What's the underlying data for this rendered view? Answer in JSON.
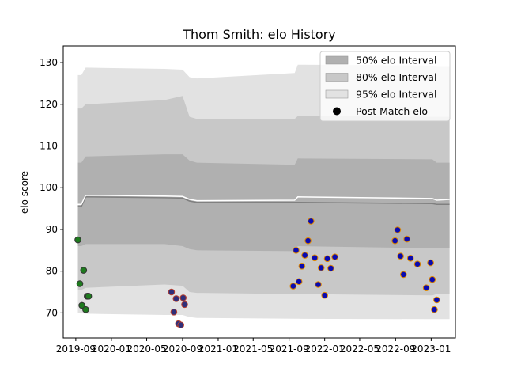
{
  "chart_data": {
    "type": "scatter",
    "title": "Thom Smith: elo History",
    "xlabel": "",
    "ylabel": "elo score",
    "xlim": [
      "2019-07-20",
      "2023-03-25"
    ],
    "ylim": [
      64,
      134
    ],
    "x_ticks": [
      "2019-09",
      "2020-01",
      "2020-05",
      "2020-09",
      "2021-01",
      "2021-05",
      "2021-09",
      "2022-01",
      "2022-05",
      "2022-09",
      "2023-01"
    ],
    "y_ticks": [
      70,
      80,
      90,
      100,
      110,
      120,
      130
    ],
    "grid": false,
    "legend": {
      "placement": "top-right",
      "entries": [
        "50% elo Interval",
        "80% elo Interval",
        "95% elo Interval",
        "Post Match elo"
      ]
    },
    "colors": {
      "band_50": "#b0b0b0",
      "band_80": "#c8c8c8",
      "band_95": "#e2e2e2",
      "median_line": "#808080",
      "mean_line": "#ffffff",
      "points_group1_fill": "#1e7b1e",
      "points_group1_edge": "#333333",
      "points_group2_fill": "#2f2f7a",
      "points_group2_edge": "#b84030",
      "points_group3_fill": "#0a0ab0",
      "points_group3_edge": "#e08a00"
    },
    "intervals": {
      "x": [
        "2019-09-08",
        "2019-09-20",
        "2019-10-05",
        "2020-07-01",
        "2020-09-01",
        "2020-09-25",
        "2020-10-20",
        "2021-09-20",
        "2021-10-01",
        "2023-01-05",
        "2023-01-20",
        "2023-03-05"
      ],
      "band95_upper": [
        127.0,
        127.0,
        128.8,
        128.5,
        128.3,
        126.5,
        126.2,
        127.5,
        129.5,
        129.3,
        129.0,
        129.0
      ],
      "band95_lower": [
        70.0,
        70.0,
        69.8,
        69.5,
        69.5,
        69.0,
        68.8,
        68.6,
        68.6,
        68.5,
        68.5,
        68.5
      ],
      "band80_upper": [
        119.0,
        119.0,
        120.0,
        121.0,
        122.0,
        117.0,
        116.5,
        116.5,
        117.2,
        117.0,
        117.0,
        117.0
      ],
      "band80_lower": [
        75.5,
        75.5,
        76.0,
        76.8,
        76.5,
        75.0,
        74.8,
        74.5,
        74.5,
        74.2,
        74.5,
        74.5
      ],
      "band50_upper": [
        106.0,
        106.0,
        107.5,
        108.0,
        108.0,
        106.5,
        106.0,
        105.5,
        107.0,
        106.8,
        106.0,
        106.0
      ],
      "band50_lower": [
        86.0,
        86.0,
        86.5,
        86.5,
        86.0,
        85.3,
        85.0,
        84.8,
        86.0,
        85.5,
        85.5,
        85.5
      ],
      "median": [
        95.5,
        95.5,
        97.8,
        97.6,
        97.5,
        96.8,
        96.5,
        96.5,
        96.5,
        96.2,
        96.0,
        96.0
      ],
      "mean": [
        96.0,
        96.0,
        98.2,
        98.0,
        97.9,
        97.2,
        96.9,
        97.0,
        97.8,
        97.4,
        97.0,
        97.2
      ]
    },
    "series": [
      {
        "name": "Post Match elo",
        "group": 1,
        "x": [
          "2019-09-08",
          "2019-09-15",
          "2019-09-22",
          "2019-09-28",
          "2019-10-05",
          "2019-10-10",
          "2019-10-15"
        ],
        "y": [
          87.5,
          77.0,
          71.8,
          80.2,
          70.8,
          74.0,
          74.0
        ]
      },
      {
        "name": "Post Match elo",
        "group": 2,
        "x": [
          "2020-07-25",
          "2020-08-02",
          "2020-08-10",
          "2020-08-18",
          "2020-08-26",
          "2020-09-03",
          "2020-09-08"
        ],
        "y": [
          75.0,
          70.2,
          73.4,
          67.4,
          67.1,
          73.6,
          72.0
        ]
      },
      {
        "name": "Post Match elo",
        "group": 3,
        "x": [
          "2021-09-15",
          "2021-09-25",
          "2021-10-05",
          "2021-10-15",
          "2021-10-25",
          "2021-11-05",
          "2021-11-15",
          "2021-11-28",
          "2021-12-10",
          "2021-12-20",
          "2022-01-01",
          "2022-01-10",
          "2022-01-22",
          "2022-02-05",
          "2022-08-30",
          "2022-09-08",
          "2022-09-18",
          "2022-09-28",
          "2022-10-10",
          "2022-10-22",
          "2022-11-15",
          "2022-12-15",
          "2022-12-30",
          "2023-01-05",
          "2023-01-12",
          "2023-01-20"
        ],
        "y": [
          76.4,
          85.0,
          77.5,
          81.2,
          83.8,
          87.3,
          92.0,
          83.2,
          76.8,
          80.8,
          74.2,
          83.0,
          80.7,
          83.4,
          87.3,
          89.9,
          83.6,
          79.2,
          87.7,
          83.1,
          81.7,
          76.0,
          82.0,
          78.0,
          70.8,
          73.1
        ]
      }
    ]
  }
}
